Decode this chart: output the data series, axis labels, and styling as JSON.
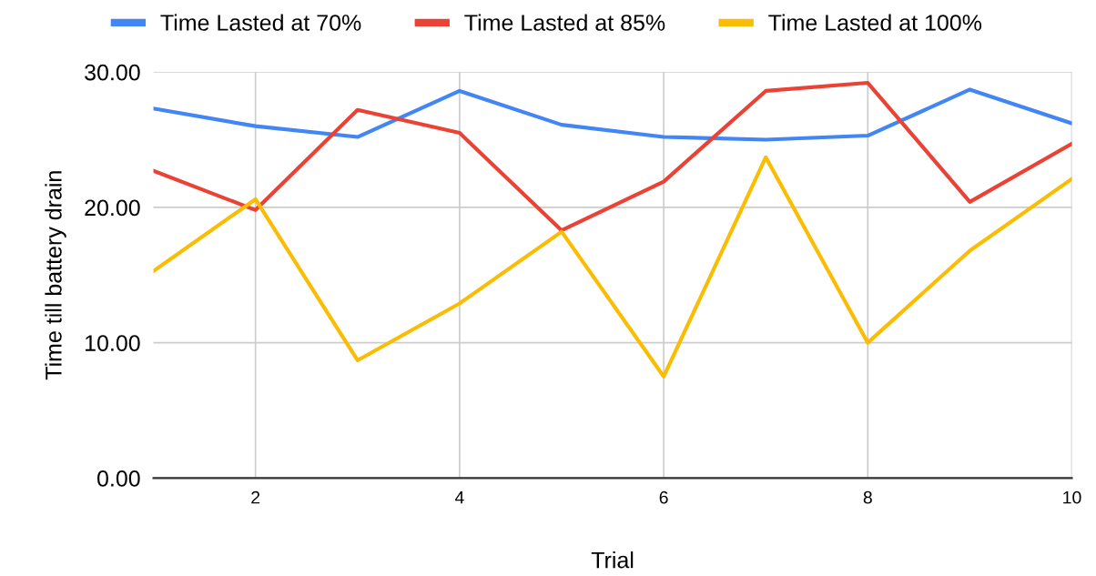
{
  "chart_data": {
    "type": "line",
    "xlabel": "Trial",
    "ylabel": "Time till battery drain",
    "x": [
      1,
      2,
      3,
      4,
      5,
      6,
      7,
      8,
      9,
      10
    ],
    "series": [
      {
        "name": "Time Lasted at 70%",
        "color": "#4285f4",
        "values": [
          27.3,
          26.0,
          25.2,
          28.6,
          26.1,
          25.2,
          25.0,
          25.3,
          28.7,
          26.2
        ]
      },
      {
        "name": "Time Lasted at 85%",
        "color": "#ea4335",
        "values": [
          22.7,
          19.8,
          27.2,
          25.5,
          18.3,
          21.9,
          28.6,
          29.2,
          20.4,
          24.7
        ]
      },
      {
        "name": "Time Lasted at 100%",
        "color": "#fbbc04",
        "values": [
          15.3,
          20.6,
          8.7,
          12.9,
          18.2,
          7.5,
          23.7,
          10.0,
          16.8,
          22.1
        ]
      }
    ],
    "xlim": [
      1,
      10
    ],
    "xticks": [
      2,
      4,
      6,
      8,
      10
    ],
    "ylim": [
      0,
      30
    ],
    "yticks": [
      {
        "value": 0,
        "label": "0.00"
      },
      {
        "value": 10,
        "label": "10.00"
      },
      {
        "value": 20,
        "label": "20.00"
      },
      {
        "value": 30,
        "label": "30.00"
      }
    ],
    "grid": true,
    "legend": "top",
    "marker": "none",
    "line_style": "solid"
  }
}
